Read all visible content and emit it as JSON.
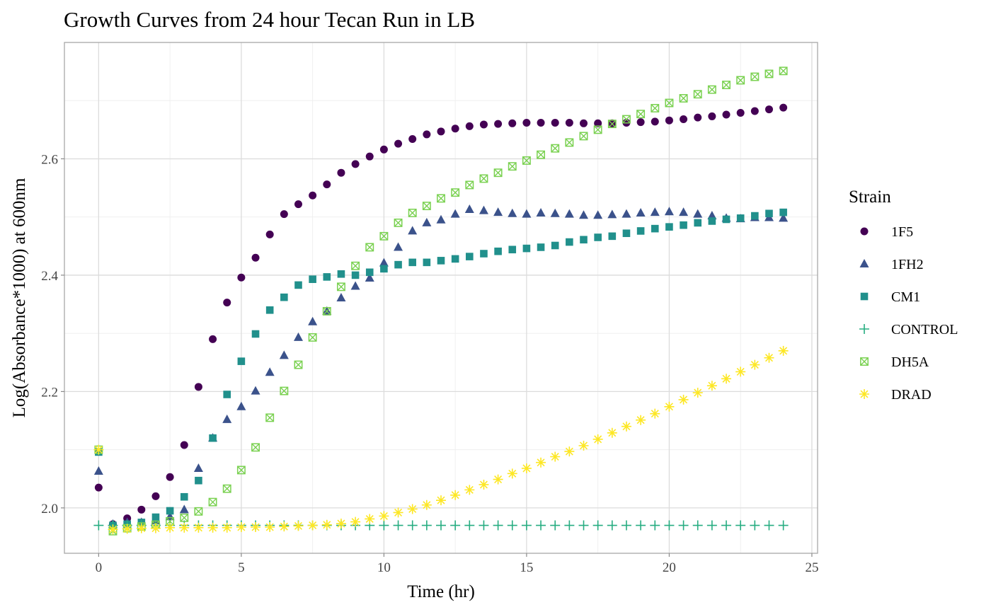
{
  "chart_data": {
    "type": "scatter",
    "title": "Growth Curves from 24 hour Tecan Run in LB",
    "xlabel": "Time (hr)",
    "ylabel": "Log(Absorbance*1000) at 600nm",
    "xlim": [
      -1.2,
      25.2
    ],
    "ylim": [
      1.922,
      2.8
    ],
    "x_ticks": [
      0,
      5,
      10,
      15,
      20,
      25
    ],
    "y_ticks": [
      2.0,
      2.2,
      2.4,
      2.6
    ],
    "x_tick_labels": [
      "0",
      "5",
      "10",
      "15",
      "20",
      "25"
    ],
    "y_tick_labels": [
      "2.0",
      "2.2",
      "2.4",
      "2.6"
    ],
    "grid": true,
    "legend_title": "Strain",
    "legend_position": "right",
    "x": [
      0,
      0.5,
      1,
      1.5,
      2,
      2.5,
      3,
      3.5,
      4,
      4.5,
      5,
      5.5,
      6,
      6.5,
      7,
      7.5,
      8,
      8.5,
      9,
      9.5,
      10,
      10.5,
      11,
      11.5,
      12,
      12.5,
      13,
      13.5,
      14,
      14.5,
      15,
      15.5,
      16,
      16.5,
      17,
      17.5,
      18,
      18.5,
      19,
      19.5,
      20,
      20.5,
      21,
      21.5,
      22,
      22.5,
      23,
      23.5,
      24
    ],
    "series": [
      {
        "name": "1F5",
        "color": "#440154",
        "shape": "circle",
        "values": [
          2.035,
          1.972,
          1.982,
          1.997,
          2.02,
          2.053,
          2.108,
          2.208,
          2.29,
          2.353,
          2.396,
          2.43,
          2.47,
          2.505,
          2.522,
          2.537,
          2.556,
          2.576,
          2.591,
          2.604,
          2.616,
          2.626,
          2.634,
          2.642,
          2.647,
          2.652,
          2.656,
          2.659,
          2.66,
          2.661,
          2.662,
          2.662,
          2.662,
          2.662,
          2.661,
          2.661,
          2.661,
          2.662,
          2.663,
          2.664,
          2.666,
          2.668,
          2.671,
          2.673,
          2.676,
          2.679,
          2.682,
          2.685,
          2.688
        ]
      },
      {
        "name": "1FH2",
        "color": "#3b528b",
        "shape": "triangle",
        "values": [
          2.063,
          1.972,
          1.975,
          1.975,
          1.978,
          1.985,
          1.997,
          2.068,
          2.12,
          2.152,
          2.174,
          2.201,
          2.233,
          2.262,
          2.293,
          2.32,
          2.338,
          2.361,
          2.381,
          2.395,
          2.421,
          2.448,
          2.476,
          2.49,
          2.495,
          2.505,
          2.513,
          2.511,
          2.508,
          2.506,
          2.505,
          2.507,
          2.506,
          2.505,
          2.503,
          2.503,
          2.504,
          2.505,
          2.507,
          2.508,
          2.509,
          2.508,
          2.505,
          2.502,
          2.498,
          2.497,
          2.499,
          2.499,
          2.498
        ]
      },
      {
        "name": "CM1",
        "color": "#21908c",
        "shape": "square",
        "values": [
          2.096,
          1.97,
          1.972,
          1.975,
          1.984,
          1.995,
          2.019,
          2.047,
          2.12,
          2.195,
          2.252,
          2.299,
          2.34,
          2.362,
          2.383,
          2.393,
          2.397,
          2.402,
          2.4,
          2.405,
          2.411,
          2.418,
          2.422,
          2.422,
          2.425,
          2.428,
          2.432,
          2.437,
          2.441,
          2.444,
          2.446,
          2.448,
          2.451,
          2.457,
          2.461,
          2.465,
          2.467,
          2.472,
          2.476,
          2.48,
          2.483,
          2.486,
          2.49,
          2.493,
          2.496,
          2.498,
          2.502,
          2.506,
          2.508
        ]
      },
      {
        "name": "CONTROL",
        "color": "#27ad81",
        "shape": "plus",
        "values": [
          1.97,
          1.97,
          1.97,
          1.97,
          1.97,
          1.97,
          1.97,
          1.97,
          1.97,
          1.97,
          1.97,
          1.97,
          1.97,
          1.97,
          1.97,
          1.97,
          1.97,
          1.97,
          1.97,
          1.97,
          1.97,
          1.97,
          1.97,
          1.97,
          1.97,
          1.97,
          1.97,
          1.97,
          1.97,
          1.97,
          1.97,
          1.97,
          1.97,
          1.97,
          1.97,
          1.97,
          1.97,
          1.97,
          1.97,
          1.97,
          1.97,
          1.97,
          1.97,
          1.97,
          1.97,
          1.97,
          1.97,
          1.97,
          1.97
        ]
      },
      {
        "name": "DH5A",
        "color": "#7ad151",
        "shape": "square-cross",
        "values": [
          2.1,
          1.96,
          1.965,
          1.968,
          1.971,
          1.977,
          1.983,
          1.994,
          2.01,
          2.033,
          2.065,
          2.104,
          2.155,
          2.201,
          2.246,
          2.293,
          2.338,
          2.38,
          2.416,
          2.448,
          2.467,
          2.49,
          2.507,
          2.519,
          2.532,
          2.542,
          2.555,
          2.566,
          2.576,
          2.587,
          2.597,
          2.607,
          2.618,
          2.628,
          2.639,
          2.65,
          2.66,
          2.668,
          2.677,
          2.687,
          2.696,
          2.704,
          2.711,
          2.719,
          2.727,
          2.735,
          2.741,
          2.746,
          2.751
        ]
      },
      {
        "name": "DRAD",
        "color": "#fde725",
        "shape": "asterisk",
        "values": [
          2.1,
          1.963,
          1.964,
          1.965,
          1.965,
          1.966,
          1.966,
          1.966,
          1.966,
          1.966,
          1.967,
          1.967,
          1.967,
          1.968,
          1.969,
          1.97,
          1.971,
          1.973,
          1.976,
          1.981,
          1.986,
          1.992,
          1.998,
          2.005,
          2.013,
          2.022,
          2.031,
          2.04,
          2.049,
          2.059,
          2.068,
          2.078,
          2.088,
          2.097,
          2.107,
          2.118,
          2.129,
          2.14,
          2.151,
          2.162,
          2.174,
          2.186,
          2.198,
          2.21,
          2.222,
          2.234,
          2.246,
          2.258,
          2.27
        ]
      }
    ]
  }
}
